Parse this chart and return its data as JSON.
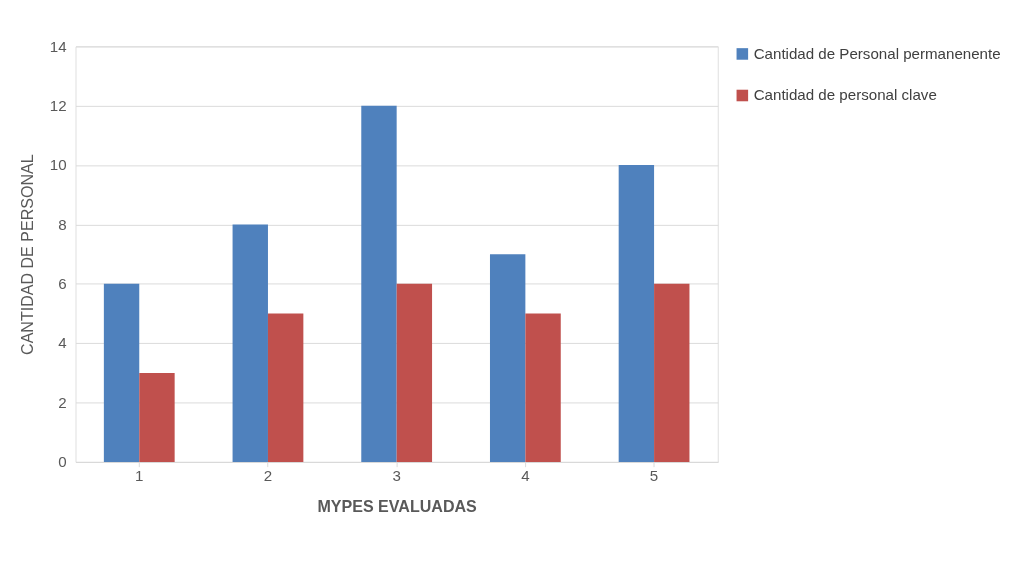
{
  "chart_data": {
    "type": "bar",
    "xlabel": "MYPES EVALUADAS",
    "ylabel": "CANTIDAD DE PERSONAL",
    "categories": [
      "1",
      "2",
      "3",
      "4",
      "5"
    ],
    "series": [
      {
        "name": "Cantidad de Personal permanenente",
        "color": "#4f81bd",
        "values": [
          6,
          8,
          12,
          7,
          10
        ]
      },
      {
        "name": "Cantidad de personal clave",
        "color": "#c0504d",
        "values": [
          3,
          5,
          6,
          5,
          6
        ]
      }
    ],
    "ylim": [
      0,
      14
    ],
    "yticks": [
      0,
      2,
      4,
      6,
      8,
      10,
      12,
      14
    ],
    "grid": "y",
    "legend": "right"
  }
}
